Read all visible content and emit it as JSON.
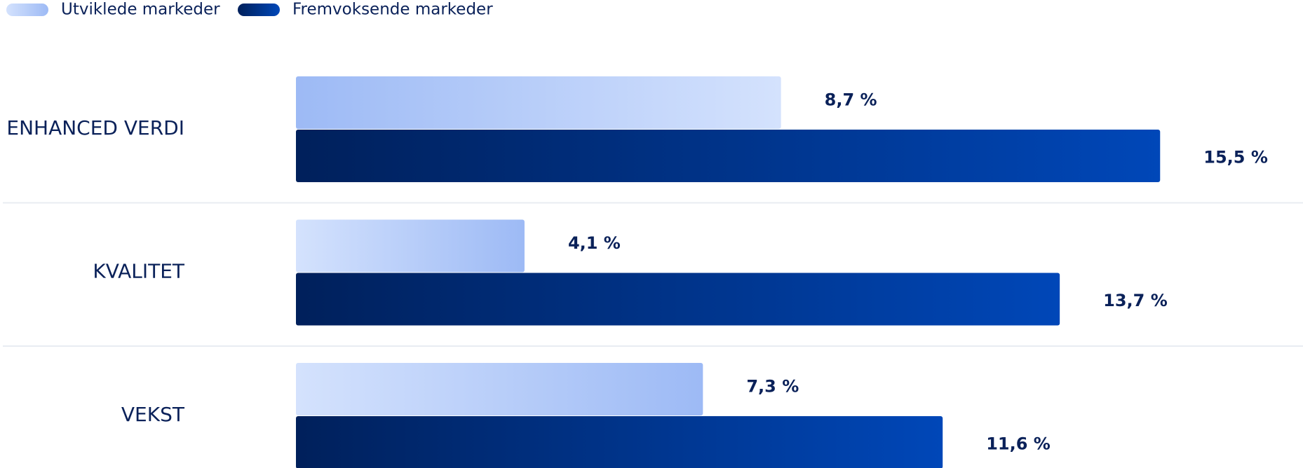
{
  "chart_data": {
    "type": "bar",
    "orientation": "horizontal",
    "categories": [
      "ENHANCED VERDI",
      "KVALITET",
      "VEKST"
    ],
    "series": [
      {
        "name": "Utviklede markeder",
        "color": "#9dbaf5",
        "values": [
          8.7,
          4.1,
          7.3
        ],
        "value_labels": [
          "8,7 %",
          "4,1 %",
          "7,3 %"
        ]
      },
      {
        "name": "Fremvoksende markeder",
        "color": "#00205b",
        "values": [
          15.5,
          13.7,
          11.6
        ],
        "value_labels": [
          "15,5 %",
          "13,7 %",
          "11,6 %"
        ]
      }
    ]
  }
}
